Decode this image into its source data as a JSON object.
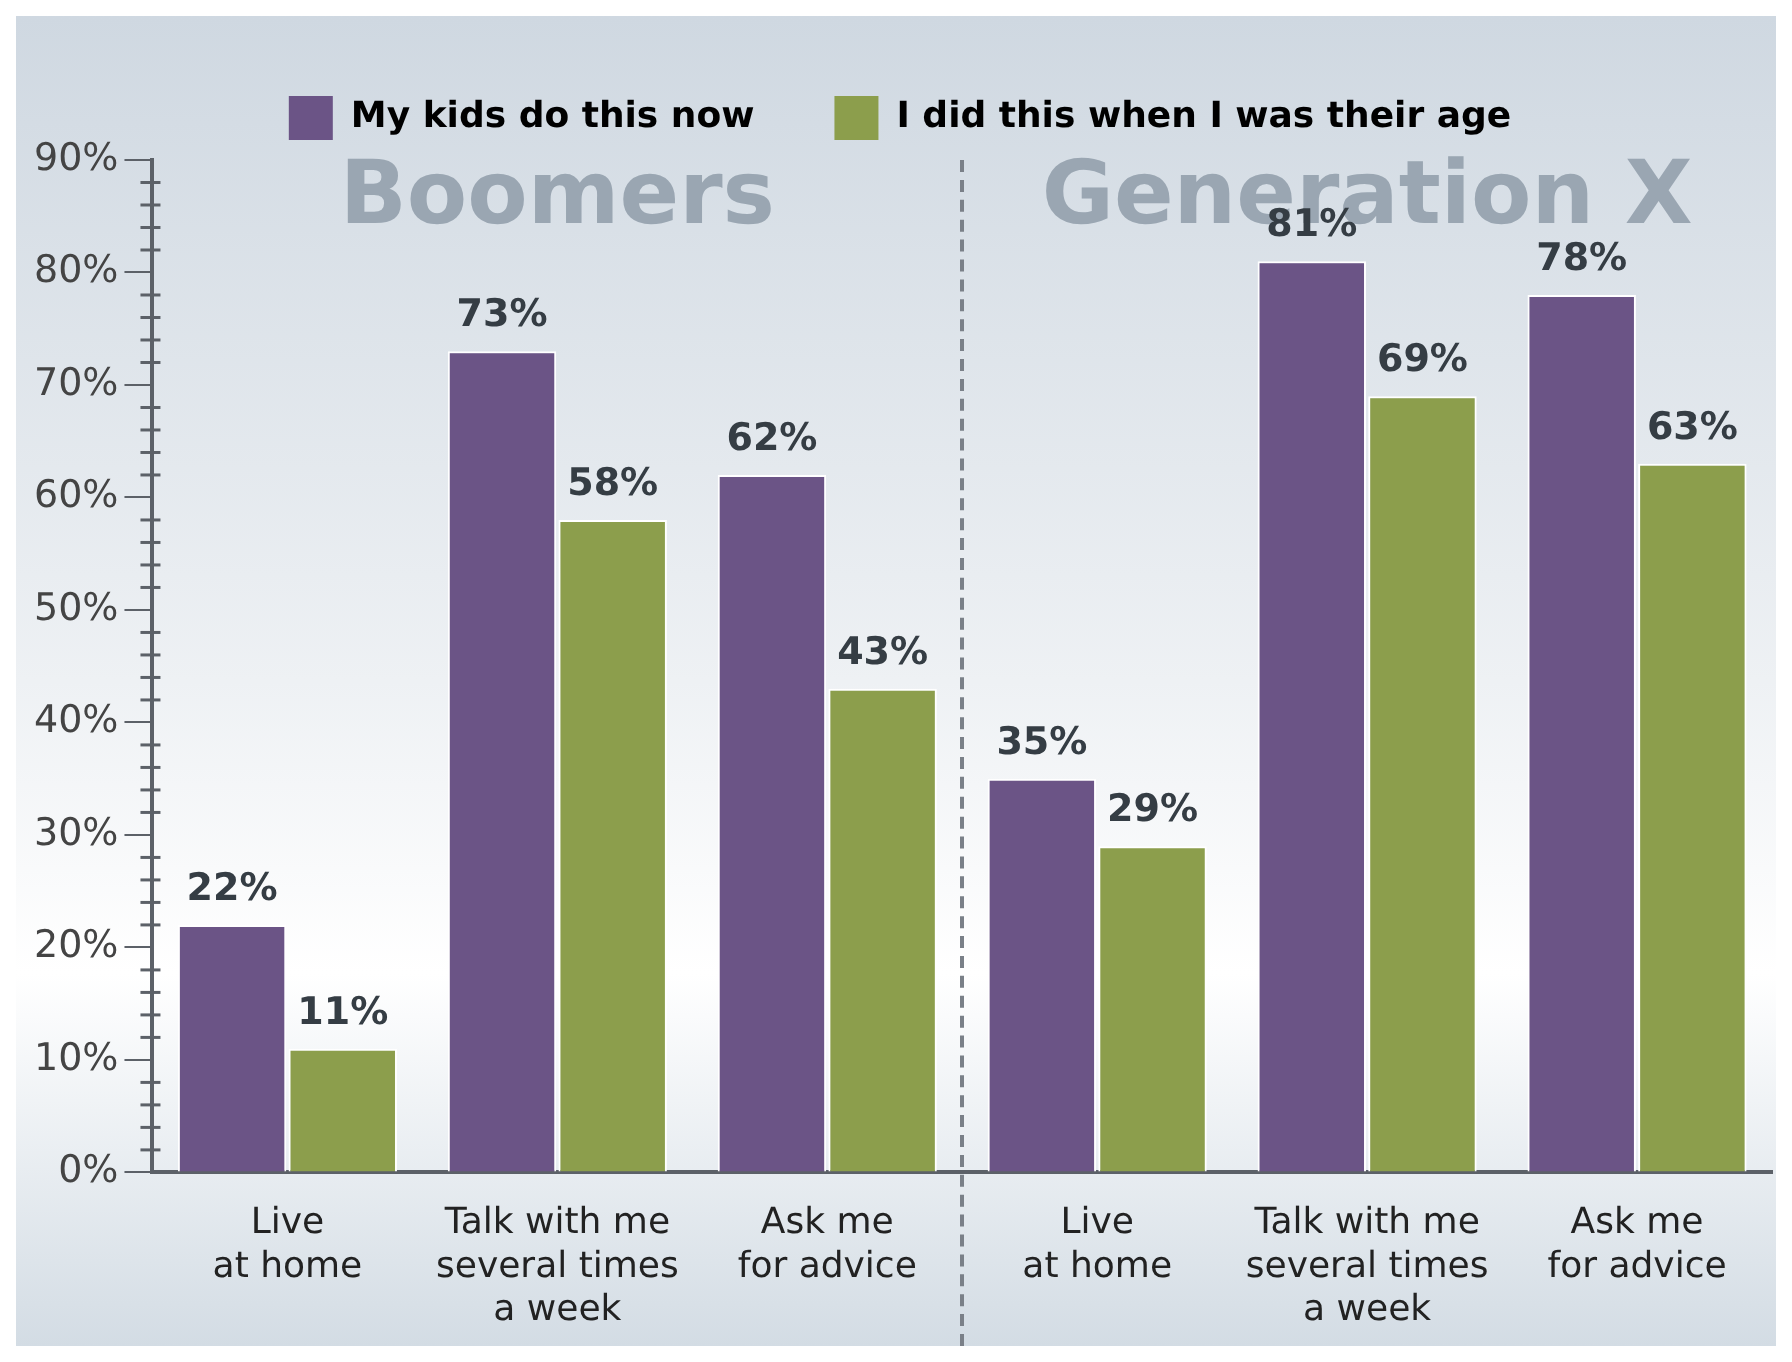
{
  "chart_data": {
    "type": "bar",
    "categories": [
      "Live\nat home",
      "Talk with me\nseveral times\na week",
      "Ask me\nfor advice",
      "Live\nat home",
      "Talk with me\nseveral times\na week",
      "Ask me\nfor advice"
    ],
    "series": [
      {
        "name": "My kids do this now",
        "color": "#6b5486",
        "values": [
          22,
          73,
          62,
          35,
          81,
          78
        ]
      },
      {
        "name": "I did this when I was their age",
        "color": "#8c9e4c",
        "values": [
          11,
          58,
          43,
          29,
          69,
          63
        ]
      }
    ],
    "ylim": [
      0,
      90
    ],
    "yticks": [
      {
        "value": 0,
        "label": "0%"
      },
      {
        "value": 10,
        "label": "10%"
      },
      {
        "value": 20,
        "label": "20%"
      },
      {
        "value": 30,
        "label": "30%"
      },
      {
        "value": 40,
        "label": "40%"
      },
      {
        "value": 50,
        "label": "50%"
      },
      {
        "value": 60,
        "label": "60%"
      },
      {
        "value": 70,
        "label": "70%"
      },
      {
        "value": 80,
        "label": "80%"
      },
      {
        "value": 90,
        "label": "90%"
      }
    ],
    "annotations": [
      "Boomers",
      "Generation X"
    ],
    "value_labels": [
      "22%",
      "73%",
      "62%",
      "35%",
      "81%",
      "78%",
      "11%",
      "58%",
      "43%",
      "29%",
      "69%",
      "63%"
    ],
    "legend": "top",
    "grid": false
  }
}
